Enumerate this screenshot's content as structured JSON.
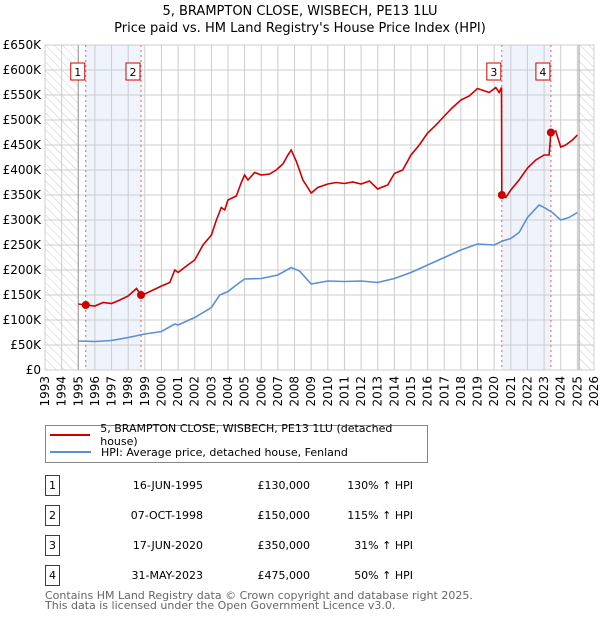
{
  "title": "5, BRAMPTON CLOSE, WISBECH, PE13 1LU",
  "subtitle": "Price paid vs. HM Land Registry's House Price Index (HPI)",
  "chart_data": {
    "type": "line",
    "xlim": [
      1993,
      2026
    ],
    "ylim": [
      0,
      650000
    ],
    "y_ticks": [
      0,
      50000,
      100000,
      150000,
      200000,
      250000,
      300000,
      350000,
      400000,
      450000,
      500000,
      550000,
      600000,
      650000
    ],
    "y_tick_labels": [
      "£0",
      "£50K",
      "£100K",
      "£150K",
      "£200K",
      "£250K",
      "£300K",
      "£350K",
      "£400K",
      "£450K",
      "£500K",
      "£550K",
      "£600K",
      "£650K"
    ],
    "x_tick_labels": [
      "1993",
      "1994",
      "1995",
      "1996",
      "1997",
      "1998",
      "1999",
      "2000",
      "2001",
      "2002",
      "2003",
      "2004",
      "2005",
      "2006",
      "2007",
      "2008",
      "2009",
      "2010",
      "2011",
      "2012",
      "2013",
      "2014",
      "2015",
      "2016",
      "2017",
      "2018",
      "2019",
      "2020",
      "2021",
      "2022",
      "2023",
      "2024",
      "2025",
      "2026"
    ],
    "grid": true,
    "hatched_ranges": [
      [
        1993,
        1995
      ],
      [
        2025.1,
        2026
      ]
    ],
    "shaded_ranges": [
      [
        1995.45,
        1998.77
      ],
      [
        2020.46,
        2023.41
      ]
    ],
    "series": [
      {
        "name": "5, BRAMPTON CLOSE, WISBECH, PE13 1LU (detached house)",
        "color": "#cc0000",
        "x": [
          1995,
          1995.45,
          1996,
          1996.5,
          1997,
          1997.5,
          1998,
          1998.5,
          1998.77,
          1999,
          1999.5,
          2000,
          2000.5,
          2000.8,
          2001,
          2001.5,
          2002,
          2002.5,
          2003,
          2003.3,
          2003.6,
          2003.8,
          2004,
          2004.5,
          2004.8,
          2005,
          2005.2,
          2005.6,
          2006,
          2006.5,
          2006.9,
          2007.3,
          2007.6,
          2007.8,
          2008.1,
          2008.5,
          2009,
          2009.4,
          2010,
          2010.5,
          2011,
          2011.5,
          2012,
          2012.5,
          2013,
          2013.2,
          2013.6,
          2014,
          2014.5,
          2015,
          2015.5,
          2016,
          2016.5,
          2017,
          2017.5,
          2018,
          2018.5,
          2019,
          2019.7,
          2020.1,
          2020.3,
          2020.44,
          2020.46,
          2020.7,
          2021,
          2021.5,
          2022,
          2022.5,
          2023,
          2023.3,
          2023.41,
          2023.7,
          2024,
          2024.3,
          2024.7,
          2025
        ],
        "y": [
          132000,
          130000,
          128000,
          135000,
          133000,
          140000,
          148000,
          163000,
          150000,
          152000,
          160000,
          168000,
          175000,
          200000,
          195000,
          208000,
          220000,
          250000,
          270000,
          300000,
          325000,
          320000,
          340000,
          348000,
          375000,
          390000,
          380000,
          395000,
          390000,
          392000,
          400000,
          412000,
          430000,
          440000,
          418000,
          380000,
          354000,
          365000,
          372000,
          375000,
          373000,
          376000,
          372000,
          378000,
          362000,
          365000,
          370000,
          393000,
          400000,
          430000,
          450000,
          474000,
          490000,
          508000,
          525000,
          540000,
          548000,
          563000,
          555000,
          565000,
          555000,
          565000,
          350000,
          345000,
          360000,
          380000,
          404000,
          420000,
          430000,
          430000,
          475000,
          478000,
          446000,
          450000,
          460000,
          470000
        ]
      },
      {
        "name": "HPI: Average price, detached house, Fenland",
        "color": "#5b8fd4",
        "x": [
          1995,
          1996,
          1997,
          1998,
          1999,
          2000,
          2000.8,
          2001,
          2002,
          2003,
          2003.5,
          2004,
          2004.5,
          2005,
          2006,
          2007,
          2007.8,
          2008.3,
          2009,
          2010,
          2011,
          2012,
          2013,
          2014,
          2015,
          2016,
          2017,
          2018,
          2019,
          2020,
          2020.5,
          2021,
          2021.5,
          2022,
          2022.7,
          2023,
          2023.5,
          2024,
          2024.5,
          2025
        ],
        "y": [
          58000,
          57000,
          59000,
          65000,
          72000,
          77000,
          92000,
          90000,
          105000,
          125000,
          150000,
          157000,
          170000,
          182000,
          183000,
          190000,
          205000,
          198000,
          172000,
          178000,
          177000,
          178000,
          175000,
          183000,
          195000,
          210000,
          225000,
          240000,
          252000,
          250000,
          258000,
          263000,
          275000,
          305000,
          330000,
          325000,
          315000,
          300000,
          305000,
          315000
        ]
      }
    ],
    "sales": [
      {
        "label": "1",
        "x": 1995.45,
        "y": 130000
      },
      {
        "label": "2",
        "x": 1998.77,
        "y": 150000
      },
      {
        "label": "3",
        "x": 2020.46,
        "y": 350000
      },
      {
        "label": "4",
        "x": 2023.41,
        "y": 475000
      }
    ]
  },
  "legend": {
    "property": "5, BRAMPTON CLOSE, WISBECH, PE13 1LU (detached house)",
    "hpi": "HPI: Average price, detached house, Fenland"
  },
  "transactions": [
    {
      "num": "1",
      "date": "16-JUN-1995",
      "price": "£130,000",
      "hpi": "130% ↑ HPI"
    },
    {
      "num": "2",
      "date": "07-OCT-1998",
      "price": "£150,000",
      "hpi": "115% ↑ HPI"
    },
    {
      "num": "3",
      "date": "17-JUN-2020",
      "price": "£350,000",
      "hpi": "31% ↑ HPI"
    },
    {
      "num": "4",
      "date": "31-MAY-2023",
      "price": "£475,000",
      "hpi": "50% ↑ HPI"
    }
  ],
  "footer": {
    "line1": "Contains HM Land Registry data © Crown copyright and database right 2025.",
    "line2": "This data is licensed under the Open Government Licence v3.0."
  }
}
